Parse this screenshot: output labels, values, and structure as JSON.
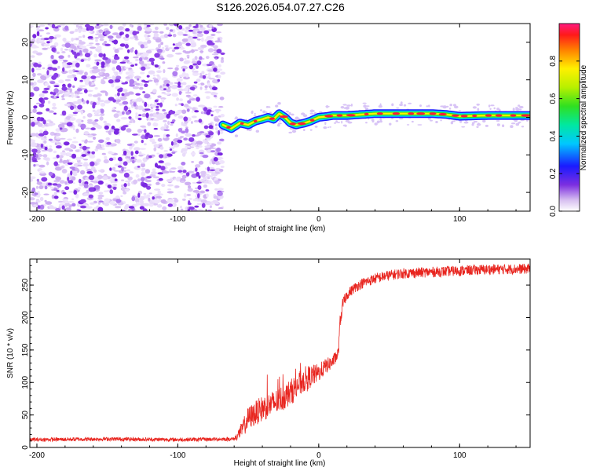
{
  "title": "S126.2026.054.07.27.C26",
  "chart_data": [
    {
      "type": "heatmap",
      "name": "spectrogram",
      "xlabel": "Height of straight line (km)",
      "ylabel": "Frequency (Hz)",
      "xlim": [
        -205,
        150
      ],
      "ylim": [
        -25,
        25
      ],
      "x_ticks": [
        -200,
        -100,
        0,
        100
      ],
      "y_ticks": [
        -20,
        -10,
        0,
        10,
        20
      ],
      "noise_region_x": [
        -205,
        -68
      ],
      "ridge": {
        "x": [
          -68,
          -62,
          -56,
          -50,
          -45,
          -40,
          -36,
          -32,
          -28,
          -24,
          -20,
          -16,
          -10,
          -6,
          0,
          5,
          10,
          20,
          40,
          60,
          80,
          90,
          100,
          120,
          150
        ],
        "freq": [
          -2,
          -3,
          -1.5,
          -2,
          -1,
          -0.5,
          0,
          -0.5,
          1,
          0,
          -1.5,
          -2,
          -1.5,
          -1,
          0,
          0.2,
          0.5,
          0.5,
          1,
          1,
          1,
          0.8,
          0.3,
          0.5,
          0.5
        ]
      },
      "colorbar": {
        "label": "Normalized spectral amplitude",
        "range": [
          0,
          1
        ],
        "ticks": [
          "0.0",
          "0.2",
          "0.4",
          "0.6",
          "0.8"
        ]
      }
    },
    {
      "type": "line",
      "name": "snr",
      "xlabel": "Height of straight line (km)",
      "ylabel": "SNR (10 * v/v)",
      "xlim": [
        -205,
        150
      ],
      "ylim": [
        0,
        290
      ],
      "x_ticks": [
        -200,
        -100,
        0,
        100
      ],
      "y_ticks": [
        0,
        50,
        100,
        150,
        200,
        250
      ],
      "color": "#e8251f",
      "series": {
        "name": "SNR",
        "x": [
          -205,
          -150,
          -100,
          -60,
          -55,
          -50,
          -40,
          -30,
          -20,
          -10,
          0,
          5,
          10,
          14,
          15,
          17,
          20,
          25,
          30,
          40,
          50,
          60,
          80,
          100,
          120,
          150
        ],
        "y": [
          12,
          13,
          12,
          13,
          25,
          45,
          60,
          70,
          85,
          105,
          115,
          125,
          132,
          145,
          190,
          220,
          235,
          245,
          252,
          260,
          265,
          268,
          270,
          272,
          274,
          275
        ],
        "noise": [
          3,
          3,
          3,
          3,
          12,
          18,
          20,
          20,
          20,
          20,
          14,
          12,
          10,
          10,
          12,
          10,
          8,
          8,
          8,
          8,
          8,
          8,
          8,
          8,
          8,
          8
        ]
      }
    }
  ]
}
